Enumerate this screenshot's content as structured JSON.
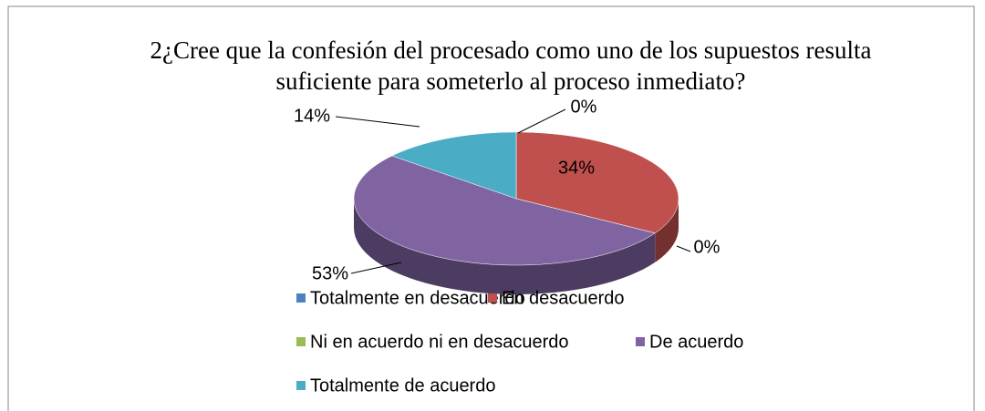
{
  "chart_data": {
    "type": "pie",
    "title": "2¿Cree que la confesión del procesado como uno de los supuestos resulta suficiente para  someterlo al proceso inmediato?",
    "categories": [
      "Totalmente en desacuerdo",
      "En desacuerdo",
      "Ni en acuerdo ni en desacuerdo",
      "De acuerdo",
      "Totalmente de acuerdo"
    ],
    "values": [
      0,
      34,
      0,
      53,
      14
    ],
    "value_labels": [
      "0%",
      "34%",
      "0%",
      "53%",
      "14%"
    ],
    "colors": [
      "#4f81bd",
      "#c0504d",
      "#9bbb59",
      "#8064a2",
      "#4bacc6"
    ]
  }
}
